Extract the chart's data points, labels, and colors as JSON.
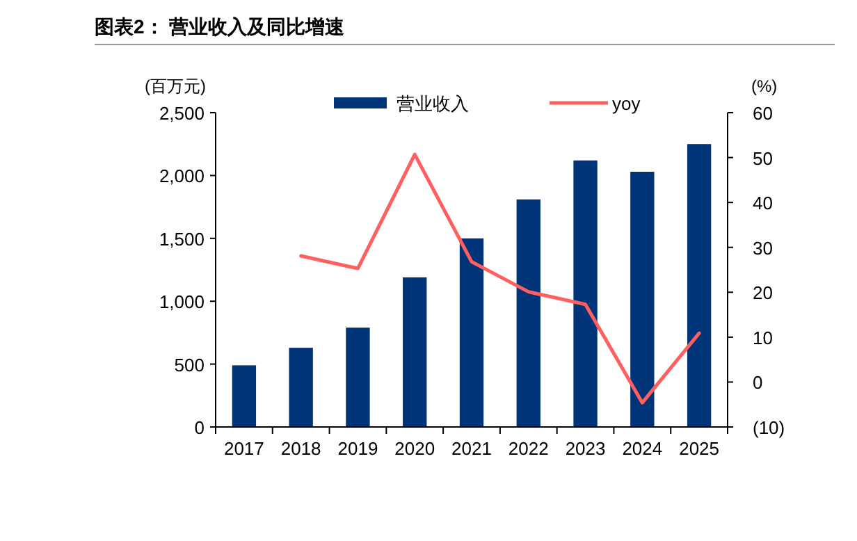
{
  "chart_data": {
    "type": "bar",
    "title": "图表2：  营业收入及同比增速",
    "ylabel": "(百万元)",
    "y2label": "(%)",
    "categories": [
      "2017",
      "2018",
      "2019",
      "2020",
      "2021",
      "2022",
      "2023",
      "2024",
      "2025"
    ],
    "series": [
      {
        "name": "营业收入",
        "color": "#003478",
        "values": [
          490,
          630,
          790,
          1190,
          1500,
          1810,
          2120,
          2030,
          2250
        ]
      },
      {
        "name": "yoy",
        "type": "line",
        "axis": "y2",
        "color": "#ff5f5f",
        "values": [
          null,
          28.1,
          25.3,
          50.7,
          26.8,
          20.1,
          17.3,
          -4.6,
          10.9
        ]
      }
    ],
    "ylim": [
      0,
      2500
    ],
    "yticks": [
      0,
      500,
      {
        "value": 1000,
        "label": "1,000"
      },
      {
        "value": 1500,
        "label": "1,500"
      },
      {
        "value": 2000,
        "label": "2,000"
      },
      {
        "value": 2500,
        "label": "2,500"
      }
    ],
    "y2lim": [
      -10,
      60
    ],
    "y2ticks": [
      {
        "value": -10,
        "label": "(10)"
      },
      0,
      10,
      20,
      30,
      40,
      50,
      60
    ],
    "legend": "top",
    "grid": false,
    "marker": "none",
    "line_style": "solid"
  }
}
